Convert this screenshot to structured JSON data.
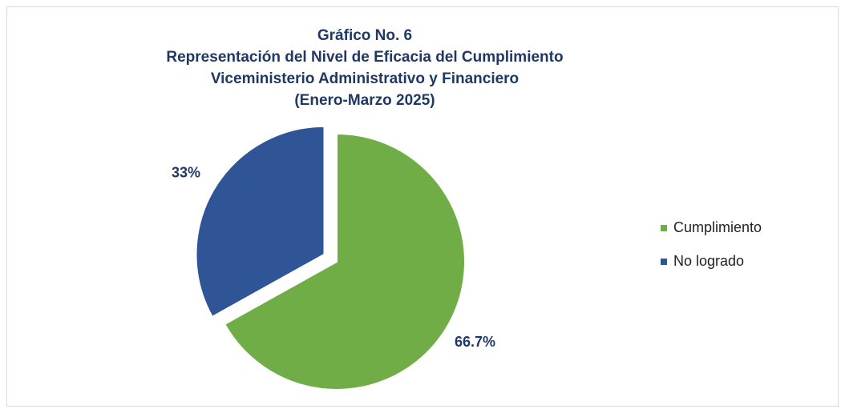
{
  "chart_data": {
    "type": "pie",
    "title": [
      "Gráfico No. 6",
      "Representación del Nivel de Eficacia del Cumplimiento",
      "Viceministerio Administrativo y Financiero",
      "(Enero-Marzo 2025)"
    ],
    "categories": [
      "Cumplimiento",
      "No logrado"
    ],
    "values": [
      66.7,
      33
    ],
    "value_labels": [
      "66.7%",
      "33%"
    ],
    "colors": [
      "#70ad47",
      "#2f5597"
    ],
    "legend": "right"
  }
}
